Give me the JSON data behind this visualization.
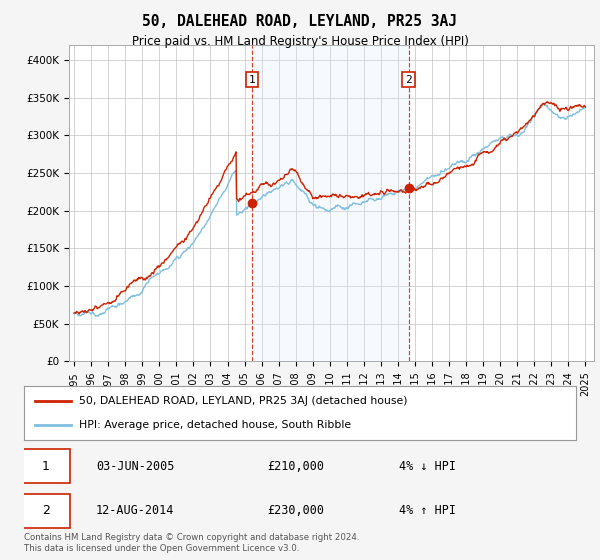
{
  "title": "50, DALEHEAD ROAD, LEYLAND, PR25 3AJ",
  "subtitle": "Price paid vs. HM Land Registry's House Price Index (HPI)",
  "ylim": [
    0,
    420000
  ],
  "yticks": [
    0,
    50000,
    100000,
    150000,
    200000,
    250000,
    300000,
    350000,
    400000
  ],
  "ytick_labels": [
    "£0",
    "£50K",
    "£100K",
    "£150K",
    "£200K",
    "£250K",
    "£300K",
    "£350K",
    "£400K"
  ],
  "xlim_start": 1994.7,
  "xlim_end": 2025.5,
  "xtick_years": [
    1995,
    1996,
    1997,
    1998,
    1999,
    2000,
    2001,
    2002,
    2003,
    2004,
    2005,
    2006,
    2007,
    2008,
    2009,
    2010,
    2011,
    2012,
    2013,
    2014,
    2015,
    2016,
    2017,
    2018,
    2019,
    2020,
    2021,
    2022,
    2023,
    2024,
    2025
  ],
  "hpi_color": "#7fbfdf",
  "price_color": "#cc2200",
  "shade_color": "#ddeeff",
  "transaction1_date": 2005.42,
  "transaction1_price": 210000,
  "transaction2_date": 2014.62,
  "transaction2_price": 230000,
  "legend_line1": "50, DALEHEAD ROAD, LEYLAND, PR25 3AJ (detached house)",
  "legend_line2": "HPI: Average price, detached house, South Ribble",
  "table_row1_date": "03-JUN-2005",
  "table_row1_price": "£210,000",
  "table_row1_hpi": "4% ↓ HPI",
  "table_row2_date": "12-AUG-2014",
  "table_row2_price": "£230,000",
  "table_row2_hpi": "4% ↑ HPI",
  "footer": "Contains HM Land Registry data © Crown copyright and database right 2024.\nThis data is licensed under the Open Government Licence v3.0.",
  "background_color": "#f5f5f5",
  "plot_bg_color": "#ffffff"
}
